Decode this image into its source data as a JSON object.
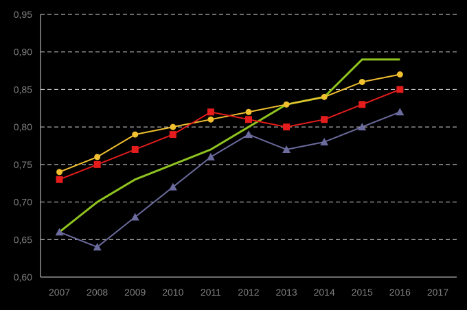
{
  "chart_data": {
    "type": "line",
    "x": [
      "2007",
      "2008",
      "2009",
      "2010",
      "2011",
      "2012",
      "2013",
      "2014",
      "2015",
      "2016",
      "2017"
    ],
    "ylim": [
      0.6,
      0.95
    ],
    "y_ticks": [
      "0,60",
      "0,65",
      "0,70",
      "0,75",
      "0,80",
      "0,85",
      "0,90",
      "0,95"
    ],
    "y_tick_values": [
      0.6,
      0.65,
      0.7,
      0.75,
      0.8,
      0.85,
      0.9,
      0.95
    ],
    "grid": "horizontal dashed",
    "legend": "none",
    "series": [
      {
        "color": "#8fc31f",
        "marker": "none",
        "values": [
          0.66,
          0.7,
          0.73,
          0.75,
          0.77,
          0.8,
          0.83,
          0.84,
          0.89,
          0.89,
          null
        ]
      },
      {
        "color": "#f0c030",
        "marker": "circle",
        "values": [
          0.74,
          0.76,
          0.79,
          0.8,
          0.81,
          0.82,
          0.83,
          0.84,
          0.86,
          0.87,
          null
        ]
      },
      {
        "color": "#e41c1c",
        "marker": "square",
        "values": [
          0.73,
          0.75,
          0.77,
          0.79,
          0.82,
          0.81,
          0.8,
          0.81,
          0.83,
          0.85,
          null
        ]
      },
      {
        "color": "#6b6b9e",
        "marker": "triangle",
        "values": [
          0.66,
          0.64,
          0.68,
          0.72,
          0.76,
          0.79,
          0.77,
          0.78,
          0.8,
          0.82,
          null
        ]
      }
    ]
  }
}
